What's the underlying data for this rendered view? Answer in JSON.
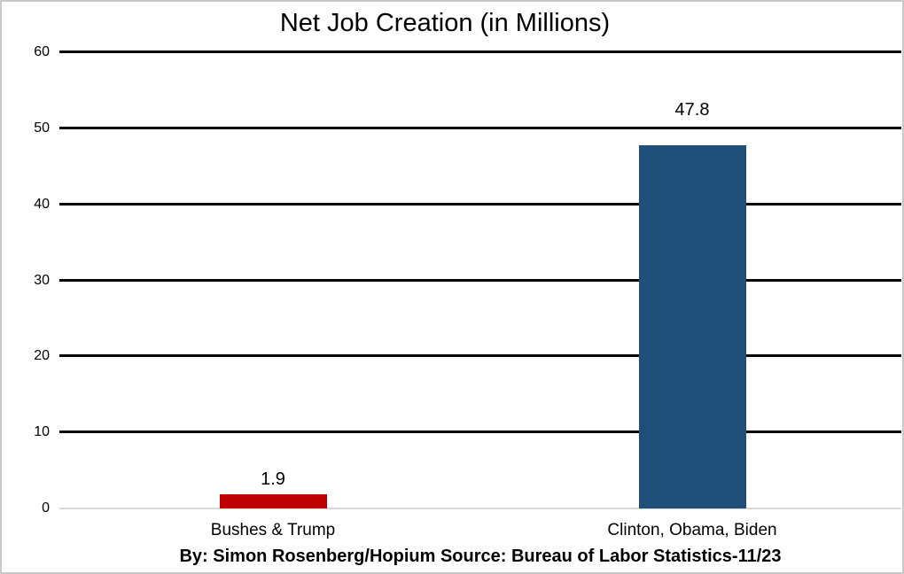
{
  "chart_data": {
    "type": "bar",
    "title": "Net Job Creation (in Millions)",
    "categories": [
      "Bushes & Trump",
      "Clinton, Obama, Biden"
    ],
    "values": [
      1.9,
      47.8
    ],
    "data_labels": [
      "1.9",
      "47.8"
    ],
    "bar_colors": [
      "#C00000",
      "#1F4E79"
    ],
    "y_ticks": [
      0,
      10,
      20,
      30,
      40,
      50,
      60
    ],
    "ylim": [
      0,
      60
    ],
    "xlabel": "",
    "ylabel": "",
    "grid": "horizontal-black",
    "gridline_color": "#000000",
    "baseline_color": "#D9D9D9",
    "legend": "none"
  },
  "footer": {
    "credit_line": "By: Simon Rosenberg/Hopium Source: Bureau of Labor Statistics-11/23"
  }
}
